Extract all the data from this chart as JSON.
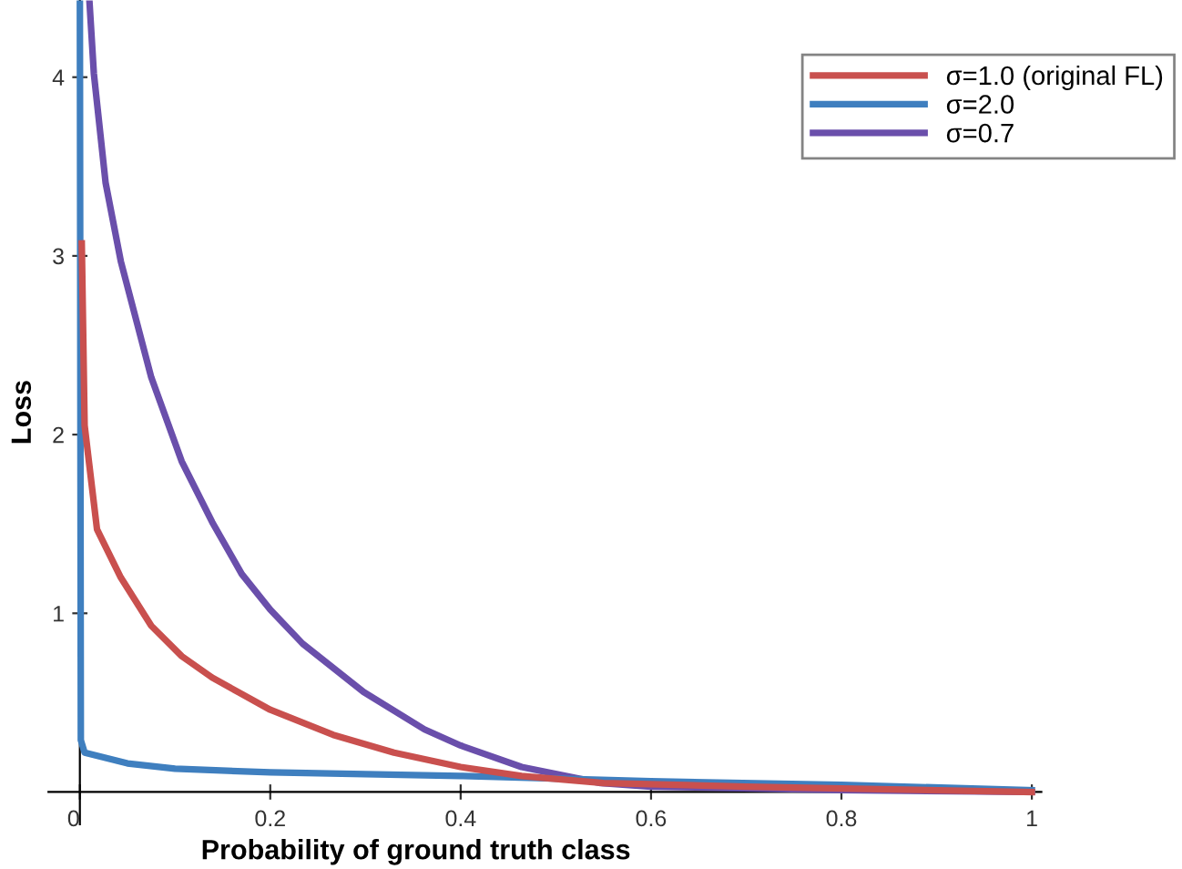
{
  "chart_data": {
    "type": "line",
    "xlabel": "Probability of ground truth class",
    "ylabel": "Loss",
    "xlim": [
      -0.033,
      1.01
    ],
    "ylim": [
      -0.18,
      4.43
    ],
    "xticks": [
      0,
      0.2,
      0.4,
      0.6,
      0.8,
      1
    ],
    "yticks": [
      1,
      2,
      3,
      4
    ],
    "grid": false,
    "legend": "top right",
    "marker": "none",
    "line_style": "solid",
    "series": [
      {
        "name": "σ=1.0 (original FL)",
        "color": "#c9504e",
        "x": [
          0.002,
          0.005,
          0.018,
          0.043,
          0.075,
          0.107,
          0.139,
          0.2,
          0.266,
          0.33,
          0.4,
          0.464,
          0.55,
          0.7,
          1.0
        ],
        "values": [
          3.07,
          2.05,
          1.47,
          1.2,
          0.93,
          0.76,
          0.64,
          0.46,
          0.32,
          0.22,
          0.14,
          0.09,
          0.05,
          0.03,
          0.0
        ]
      },
      {
        "name": "σ=2.0",
        "color": "#3f7fbf",
        "x": [
          0.0,
          0.001,
          0.005,
          0.05,
          0.1,
          0.2,
          0.4,
          0.6,
          0.8,
          1.0
        ],
        "values": [
          4.43,
          0.29,
          0.22,
          0.16,
          0.13,
          0.11,
          0.09,
          0.06,
          0.04,
          0.01
        ]
      },
      {
        "name": "σ=0.7",
        "color": "#6a4fab",
        "x": [
          0.01,
          0.0147,
          0.027,
          0.043,
          0.075,
          0.107,
          0.139,
          0.17,
          0.2,
          0.234,
          0.298,
          0.362,
          0.4,
          0.464,
          0.547,
          0.6,
          0.8,
          1.0
        ],
        "values": [
          4.43,
          4.02,
          3.41,
          2.97,
          2.32,
          1.85,
          1.51,
          1.22,
          1.02,
          0.83,
          0.56,
          0.35,
          0.26,
          0.14,
          0.05,
          0.03,
          0.01,
          0.0
        ]
      }
    ]
  }
}
